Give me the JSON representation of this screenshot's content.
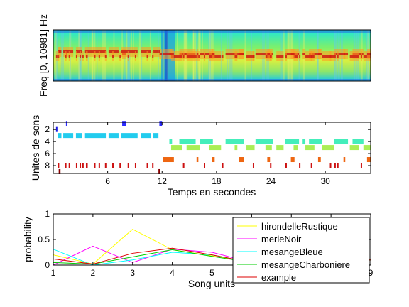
{
  "chart_data": [
    {
      "type": "heatmap",
      "ylabel": "Freq [0, 10981] Hz",
      "description_ticks_visible": false
    },
    {
      "type": "scatter",
      "xlabel": "Temps en secondes",
      "ylabel": "Unites de sons",
      "xlim": [
        0,
        35
      ],
      "ylim": [
        9.3,
        0.8
      ],
      "xticks": [
        "6",
        "12",
        "18",
        "24",
        "30"
      ],
      "xtick_values": [
        6,
        12,
        18,
        24,
        30
      ],
      "yticks": [
        "2",
        "4",
        "6",
        "8"
      ],
      "ytick_values": [
        2,
        4,
        6,
        8
      ],
      "unit_colors": {
        "1": "#2a2aff",
        "2": "#1a1ae6",
        "3": "#22ccee",
        "4": "#44eebb",
        "5": "#aaee55",
        "6": "#ffdd00",
        "7": "#ee6611",
        "8": "#cc1111",
        "9": "#880000"
      },
      "events": [
        {
          "unit": 1,
          "segments": [
            [
              1.4,
              1.5
            ],
            [
              7.6,
              8.0
            ],
            [
              11.7,
              12.0
            ]
          ]
        },
        {
          "unit": 2,
          "segments": [
            [
              0.3,
              0.4
            ]
          ]
        },
        {
          "unit": 3,
          "segments": [
            [
              0.5,
              0.9
            ],
            [
              1.1,
              2.2
            ],
            [
              2.5,
              3.2
            ],
            [
              3.5,
              5.8
            ],
            [
              6.1,
              7.2
            ],
            [
              7.5,
              9.3
            ],
            [
              9.7,
              10.8
            ],
            [
              11.0,
              11.6
            ]
          ]
        },
        {
          "unit": 4,
          "segments": [
            [
              12.8,
              13.1
            ],
            [
              13.9,
              15.7
            ],
            [
              16.2,
              17.6
            ],
            [
              19.0,
              21.0
            ],
            [
              22.3,
              24.2
            ],
            [
              25.6,
              27.1
            ],
            [
              27.5,
              27.8
            ],
            [
              28.2,
              29.6
            ],
            [
              31.0,
              32.5
            ],
            [
              33.0,
              34.2
            ]
          ]
        },
        {
          "unit": 5,
          "segments": [
            [
              13.0,
              14.2
            ],
            [
              14.7,
              16.2
            ],
            [
              17.2,
              18.5
            ],
            [
              20.0,
              20.3
            ],
            [
              21.3,
              22.2
            ],
            [
              23.4,
              24.1
            ],
            [
              24.6,
              25.4
            ],
            [
              26.5,
              27.0
            ],
            [
              27.8,
              28.8
            ],
            [
              29.6,
              31.0
            ],
            [
              32.7,
              33.7
            ],
            [
              34.2,
              35.0
            ]
          ]
        },
        {
          "unit": 7,
          "segments": [
            [
              12.1,
              13.3
            ],
            [
              15.8,
              16.0
            ],
            [
              17.5,
              17.8
            ],
            [
              20.5,
              21.0
            ],
            [
              23.6,
              23.9
            ],
            [
              26.2,
              26.6
            ],
            [
              29.2,
              29.5
            ],
            [
              32.0,
              32.2
            ],
            [
              34.6,
              35.0
            ]
          ]
        },
        {
          "unit": 8,
          "segments": [
            [
              0.5,
              0.6
            ],
            [
              1.3,
              1.4
            ],
            [
              1.7,
              1.8
            ],
            [
              2.5,
              2.6
            ],
            [
              2.9,
              3.0
            ],
            [
              3.2,
              3.3
            ],
            [
              3.6,
              3.8
            ],
            [
              4.5,
              4.6
            ],
            [
              5.0,
              5.1
            ],
            [
              5.7,
              5.8
            ],
            [
              6.5,
              6.6
            ],
            [
              7.3,
              7.4
            ],
            [
              8.2,
              8.3
            ],
            [
              9.0,
              9.1
            ],
            [
              10.3,
              10.4
            ],
            [
              10.9,
              11.0
            ],
            [
              14.3,
              14.4
            ],
            [
              16.6,
              16.7
            ],
            [
              18.6,
              18.7
            ],
            [
              22.0,
              22.1
            ],
            [
              23.9,
              24.0
            ],
            [
              25.6,
              25.7
            ],
            [
              27.1,
              27.2
            ],
            [
              28.4,
              28.5
            ],
            [
              30.5,
              30.6
            ],
            [
              31.0,
              31.1
            ],
            [
              31.3,
              31.4
            ],
            [
              33.9,
              34.0
            ]
          ]
        },
        {
          "unit": 9,
          "segments": [
            [
              0.6,
              0.8
            ],
            [
              11.6,
              11.8
            ]
          ]
        }
      ]
    },
    {
      "type": "line",
      "xlabel": "Song units",
      "ylabel": "probability",
      "xlim": [
        1,
        9
      ],
      "ylim": [
        0,
        1
      ],
      "xticks": [
        "1",
        "2",
        "3",
        "4",
        "5",
        "6",
        "7",
        "8",
        "9"
      ],
      "yticks": [
        "0",
        "0.5",
        "1"
      ],
      "x": [
        1,
        2,
        3,
        4,
        5,
        6,
        7,
        8,
        9
      ],
      "legend_position": "upper-right",
      "series": [
        {
          "name": "hirondelleRustique",
          "color": "#ffff00",
          "values": [
            0.2,
            0.02,
            0.7,
            0.3,
            0.18,
            0.05,
            0.05,
            0.05,
            0.1
          ]
        },
        {
          "name": "merleNoir",
          "color": "#ff00ff",
          "values": [
            0.0,
            0.37,
            0.05,
            0.31,
            0.25,
            0.05,
            0.05,
            0.05,
            0.1
          ]
        },
        {
          "name": "mesangeBleue",
          "color": "#00ffff",
          "values": [
            0.31,
            0.0,
            0.1,
            0.25,
            0.2,
            0.05,
            0.05,
            0.05,
            0.1
          ]
        },
        {
          "name": "mesangeCharboniere",
          "color": "#00cc00",
          "values": [
            0.05,
            0.02,
            0.16,
            0.3,
            0.17,
            0.05,
            0.05,
            0.05,
            0.1
          ]
        },
        {
          "name": "example",
          "color": "#dd0000",
          "values": [
            0.12,
            0.02,
            0.23,
            0.33,
            0.2,
            0.05,
            0.05,
            0.05,
            0.1
          ]
        }
      ]
    }
  ]
}
